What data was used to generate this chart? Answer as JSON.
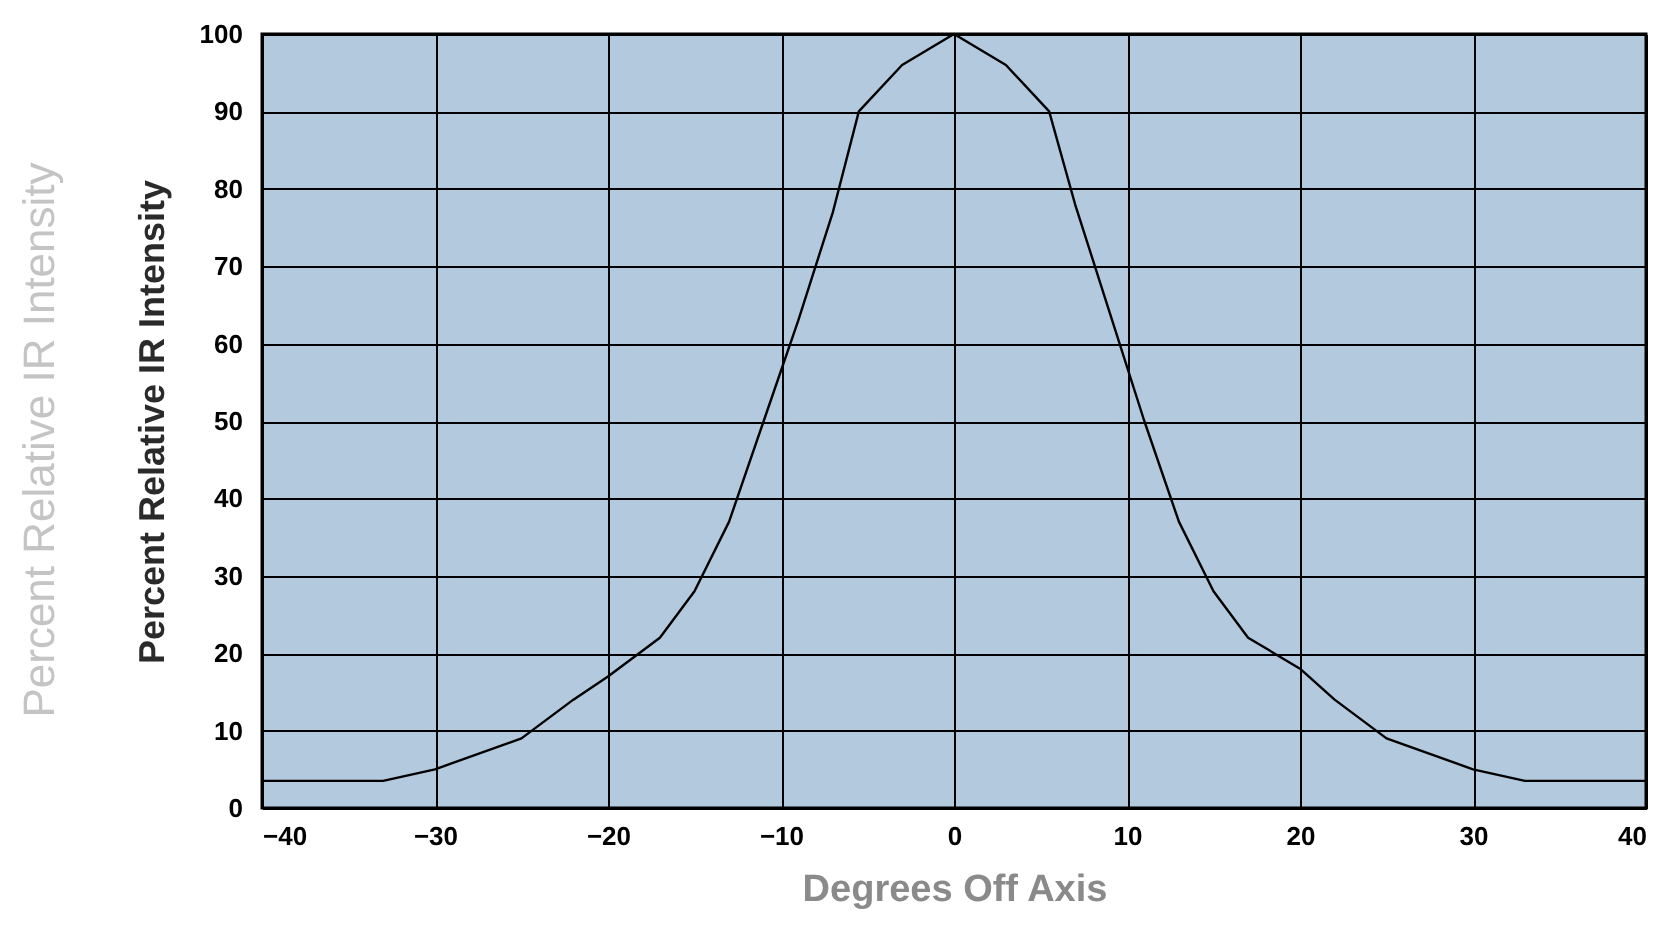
{
  "chart_data": {
    "type": "line",
    "xlabel": "Degrees Off Axis",
    "ylabel": "Percent Relative IR Intensity",
    "annotations": [
      "Percent Relative IR Intensity"
    ],
    "xlim": [
      -40,
      40
    ],
    "xticks": [
      -40,
      -30,
      -20,
      -10,
      0,
      10,
      20,
      30,
      40
    ],
    "ylim": [
      0,
      100
    ],
    "yticks": [
      0,
      10,
      20,
      30,
      40,
      50,
      60,
      70,
      80,
      90,
      100
    ],
    "grid": true,
    "series": [
      {
        "color": "#000000",
        "x": [
          -40,
          -33,
          -30,
          -25,
          -22,
          -20,
          -17,
          -15,
          -13,
          -11,
          -9,
          -7,
          -5.5,
          -3,
          0,
          3,
          5.5,
          7,
          9,
          11,
          13,
          15,
          17,
          20,
          22,
          25,
          30,
          33,
          40
        ],
        "values": [
          3.5,
          3.5,
          5,
          9,
          14,
          17,
          22,
          28,
          37,
          50,
          63,
          77,
          90,
          96,
          100,
          96,
          90,
          78,
          64,
          50,
          37,
          28,
          22,
          18,
          14,
          9,
          5,
          3.5,
          3.5
        ]
      }
    ]
  }
}
